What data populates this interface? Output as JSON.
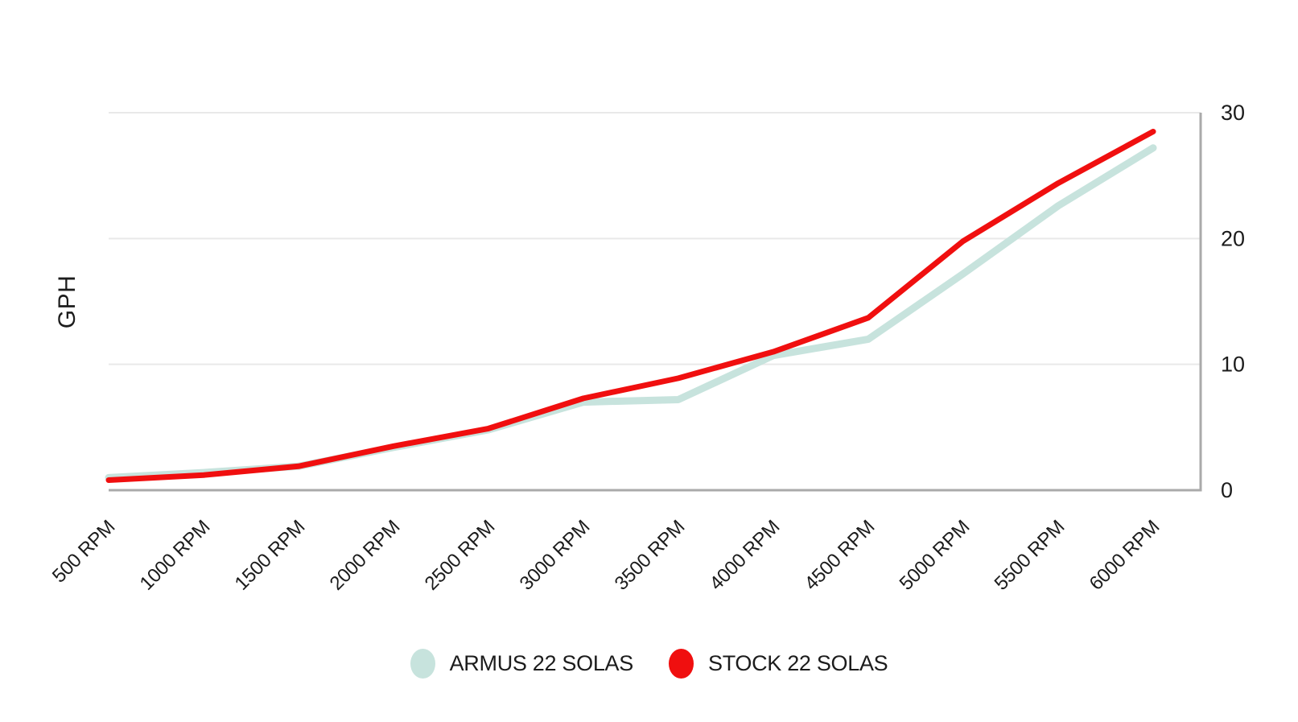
{
  "page": {
    "background": "#ffffff",
    "text_color": "#1c1c1c"
  },
  "colors": {
    "armus": "#c7e3dd",
    "stock": "#f00f0f",
    "gridline": "#e9e9e9",
    "axis_line": "#aaaaaa",
    "label_text": "#1c1c1c"
  },
  "chart_data": {
    "type": "line",
    "title": "",
    "xlabel": "",
    "ylabel": "GPH",
    "categories": [
      "500 RPM",
      "1000 RPM",
      "1500 RPM",
      "2000 RPM",
      "2500 RPM",
      "3000 RPM",
      "3500 RPM",
      "4000 RPM",
      "4500 RPM",
      "5000 RPM",
      "5500 RPM",
      "6000 RPM"
    ],
    "rpm_values": [
      500,
      1000,
      1500,
      2000,
      2500,
      3000,
      3500,
      4000,
      4500,
      5000,
      5500,
      6000
    ],
    "ylim": [
      0,
      30
    ],
    "y_ticks": [
      0,
      10,
      20,
      30
    ],
    "grid": "horizontal gridlines on, vertical off",
    "axis_lines": "bottom and right borders, y tick labels on right side",
    "x_label_rotation_deg": -45,
    "legend_position": "bottom center",
    "series": [
      {
        "name": "ARMUS 22 SOLAS",
        "color": "#c7e3dd",
        "values": [
          1.0,
          1.4,
          1.9,
          3.4,
          4.8,
          7.0,
          7.2,
          10.7,
          12.0,
          17.2,
          22.6,
          27.2
        ]
      },
      {
        "name": "STOCK 22 SOLAS",
        "color": "#f00f0f",
        "values": [
          0.8,
          1.2,
          1.9,
          3.5,
          4.9,
          7.3,
          8.9,
          11.0,
          13.7,
          19.8,
          24.4,
          28.5
        ]
      }
    ]
  }
}
